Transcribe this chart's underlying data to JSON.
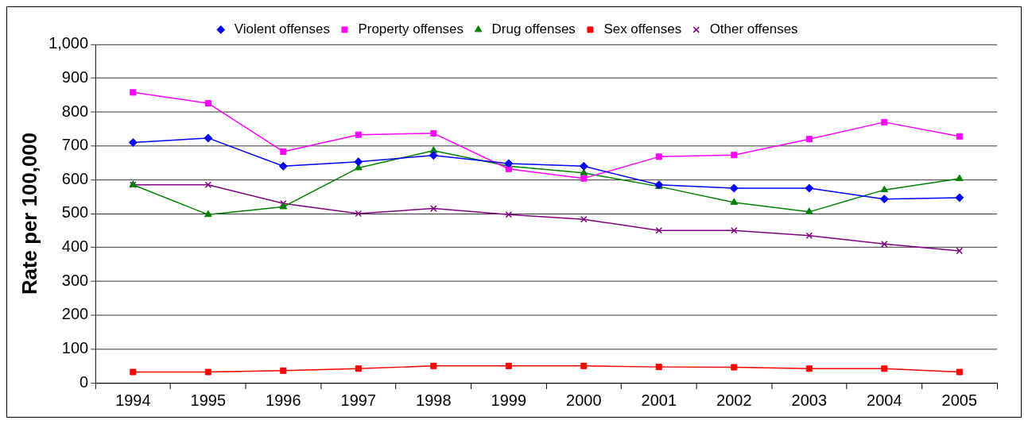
{
  "chart_data": {
    "type": "line",
    "ylabel": "Rate per 100,000",
    "categories": [
      "1994",
      "1995",
      "1996",
      "1997",
      "1998",
      "1999",
      "2000",
      "2001",
      "2002",
      "2003",
      "2004",
      "2005"
    ],
    "series": [
      {
        "name": "Violent offenses",
        "color": "#0000ff",
        "marker": "diamond",
        "values": [
          710,
          723,
          640,
          653,
          672,
          648,
          640,
          585,
          575,
          575,
          543,
          547
        ]
      },
      {
        "name": "Property offenses",
        "color": "#ff00ff",
        "marker": "square",
        "values": [
          858,
          826,
          683,
          733,
          737,
          632,
          604,
          668,
          673,
          720,
          770,
          728
        ]
      },
      {
        "name": "Drug offenses",
        "color": "#008000",
        "marker": "triangle",
        "values": [
          585,
          497,
          520,
          635,
          686,
          640,
          620,
          580,
          533,
          505,
          570,
          603
        ]
      },
      {
        "name": "Sex offenses",
        "color": "#ff0000",
        "marker": "square",
        "values": [
          32,
          32,
          36,
          42,
          50,
          50,
          50,
          47,
          46,
          42,
          42,
          32
        ]
      },
      {
        "name": "Other offenses",
        "color": "#800080",
        "marker": "cross",
        "values": [
          585,
          585,
          530,
          500,
          515,
          497,
          483,
          450,
          450,
          435,
          410,
          390
        ]
      }
    ],
    "ylim": [
      0,
      1000
    ],
    "yticks": [
      0,
      {
        "value": 100,
        "label": "100"
      },
      {
        "value": 200,
        "label": "200"
      },
      {
        "value": 300,
        "label": "300"
      },
      {
        "value": 400,
        "label": "400"
      },
      {
        "value": 500,
        "label": "500"
      },
      {
        "value": 600,
        "label": "600"
      },
      {
        "value": 700,
        "label": "700"
      },
      {
        "value": 800,
        "label": "800"
      },
      {
        "value": 900,
        "label": "900"
      },
      {
        "value": 1000,
        "label": "1,000"
      }
    ],
    "grid": "y",
    "legend": "top"
  }
}
